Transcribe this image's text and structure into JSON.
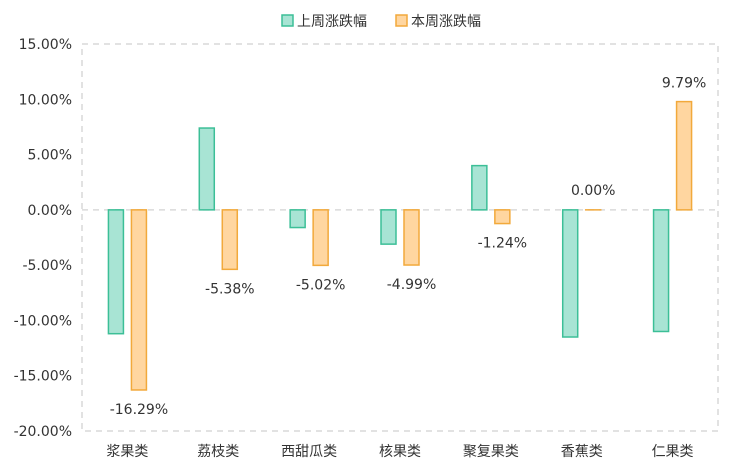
{
  "chart_data": {
    "type": "bar",
    "categories": [
      "浆果类",
      "荔枝类",
      "西甜瓜类",
      "核果类",
      "聚复果类",
      "香蕉类",
      "仁果类"
    ],
    "series": [
      {
        "name": "上周涨跌幅",
        "values": [
          -11.2,
          7.4,
          -1.6,
          -3.1,
          4.0,
          -11.5,
          -11.0
        ],
        "show_labels": false
      },
      {
        "name": "本周涨跌幅",
        "values": [
          -16.29,
          -5.38,
          -5.02,
          -4.99,
          -1.24,
          0.0,
          9.79
        ],
        "labels": [
          "-16.29%",
          "-5.38%",
          "-5.02%",
          "-4.99%",
          "-1.24%",
          "0.00%",
          "9.79%"
        ],
        "show_labels": true
      }
    ],
    "ylim": [
      -20,
      15
    ],
    "yticks": [
      15,
      10,
      5,
      0,
      -5,
      -10,
      -15,
      -20
    ],
    "ytick_labels": [
      "15.00%",
      "10.00%",
      "5.00%",
      "0.00%",
      "-5.00%",
      "-10.00%",
      "-15.00%",
      "-20.00%"
    ],
    "grid": "dashed-zero-line",
    "legend_position": "top-center",
    "colors": {
      "series1_fill": "#a8e4d4",
      "series1_stroke": "#3cbf97",
      "series2_fill": "#ffd6a0",
      "series2_stroke": "#f2a93b",
      "axis": "#d9d9d9",
      "text": "#333333"
    }
  }
}
